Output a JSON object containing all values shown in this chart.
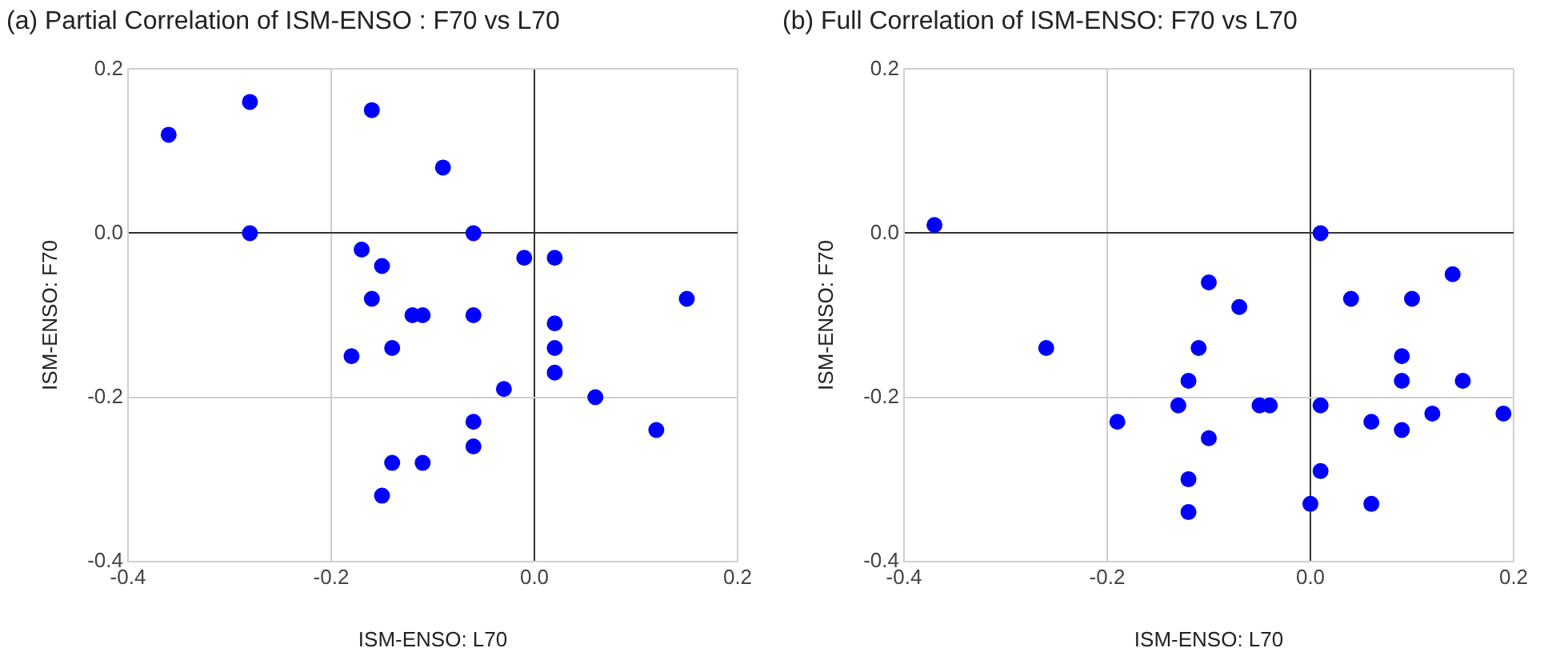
{
  "chart_data": [
    {
      "type": "scatter",
      "title": "(a) Partial Correlation of ISM-ENSO : F70 vs L70",
      "xlabel": "ISM-ENSO: L70",
      "ylabel": "ISM-ENSO: F70",
      "marker": "circle",
      "grid": true,
      "legend": false,
      "xlim": [
        -0.4,
        0.2
      ],
      "xticks": [
        -0.4,
        -0.2,
        {
          "value": 0,
          "label": "0.0"
        },
        0.2
      ],
      "ylim": [
        -0.4,
        0.2
      ],
      "yticks": [
        -0.4,
        -0.2,
        {
          "value": 0,
          "label": "0.0"
        },
        0.2
      ],
      "series": [
        {
          "color": "#0000ff",
          "x": [
            -0.36,
            -0.28,
            -0.16,
            -0.09,
            -0.28,
            -0.06,
            -0.17,
            -0.15,
            -0.01,
            0.02,
            0.15,
            -0.16,
            -0.12,
            -0.11,
            -0.06,
            0.02,
            -0.18,
            -0.14,
            0.02,
            0.02,
            -0.03,
            0.06,
            0.12,
            -0.06,
            -0.06,
            -0.14,
            -0.11,
            -0.15
          ],
          "values": [
            0.12,
            0.16,
            0.15,
            0.08,
            0,
            0,
            -0.02,
            -0.04,
            -0.03,
            -0.03,
            -0.08,
            -0.08,
            -0.1,
            -0.1,
            -0.1,
            -0.11,
            -0.15,
            -0.14,
            -0.14,
            -0.17,
            -0.19,
            -0.2,
            -0.24,
            -0.23,
            -0.26,
            -0.28,
            -0.28,
            -0.32
          ]
        }
      ]
    },
    {
      "type": "scatter",
      "title": "(b) Full Correlation of ISM-ENSO: F70 vs L70",
      "xlabel": "ISM-ENSO: L70",
      "ylabel": "ISM-ENSO: F70",
      "marker": "circle",
      "grid": true,
      "legend": false,
      "xlim": [
        -0.4,
        0.2
      ],
      "xticks": [
        -0.4,
        -0.2,
        {
          "value": 0,
          "label": "0.0"
        },
        0.2
      ],
      "ylim": [
        -0.4,
        0.2
      ],
      "yticks": [
        -0.4,
        -0.2,
        {
          "value": 0,
          "label": "0.0"
        },
        0.2
      ],
      "series": [
        {
          "color": "#0000ff",
          "x": [
            -0.37,
            0.01,
            -0.1,
            -0.07,
            0.04,
            0.1,
            0.14,
            -0.26,
            -0.11,
            0.09,
            -0.12,
            0.09,
            0.15,
            -0.13,
            -0.05,
            -0.04,
            0.01,
            -0.19,
            0.06,
            0.12,
            0.19,
            0.09,
            -0.1,
            -0.12,
            0.01,
            -0.12,
            0.0,
            0.06
          ],
          "values": [
            0.01,
            0,
            -0.06,
            -0.09,
            -0.08,
            -0.08,
            -0.05,
            -0.14,
            -0.14,
            -0.15,
            -0.18,
            -0.18,
            -0.18,
            -0.21,
            -0.21,
            -0.21,
            -0.21,
            -0.23,
            -0.23,
            -0.22,
            -0.22,
            -0.24,
            -0.25,
            -0.3,
            -0.29,
            -0.34,
            -0.33,
            -0.33
          ]
        }
      ]
    }
  ]
}
